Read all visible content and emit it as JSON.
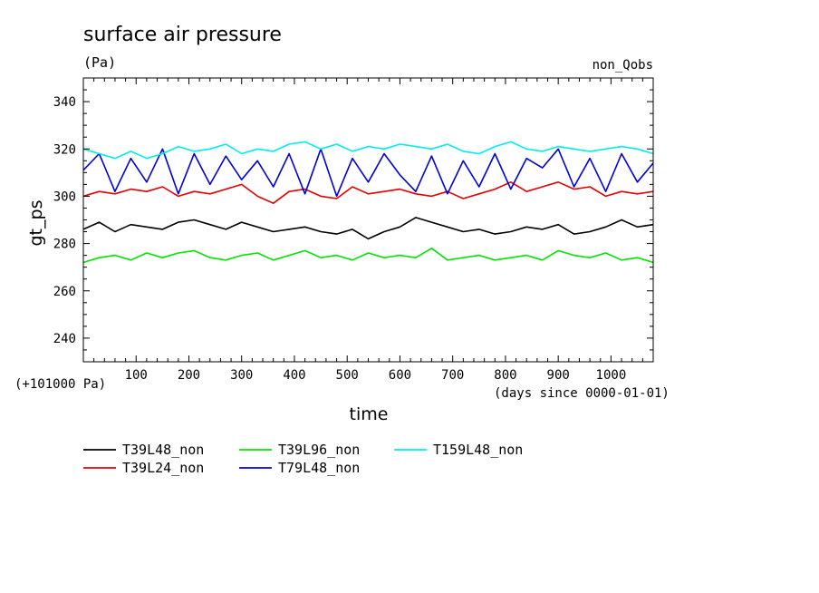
{
  "chart_data": {
    "type": "line",
    "title": "surface air pressure",
    "units": "(Pa)",
    "experiment": "non_Qobs",
    "xlabel": "time",
    "ylabel": "gt_ps",
    "y_offset_note": "(+101000 Pa)",
    "x_units_note": "(days since 0000-01-01)",
    "xlim": [
      0,
      1080
    ],
    "ylim": [
      230,
      350
    ],
    "xticks": [
      100,
      200,
      300,
      400,
      500,
      600,
      700,
      800,
      900,
      1000
    ],
    "yticks": [
      240,
      260,
      280,
      300,
      320,
      340
    ],
    "grid": false,
    "legend_position": "bottom",
    "x": [
      0,
      30,
      60,
      90,
      120,
      150,
      180,
      210,
      240,
      270,
      300,
      330,
      360,
      390,
      420,
      450,
      480,
      510,
      540,
      570,
      600,
      630,
      660,
      690,
      720,
      750,
      780,
      810,
      840,
      870,
      900,
      930,
      960,
      990,
      1020,
      1050,
      1080
    ],
    "series": [
      {
        "name": "T39L48_non",
        "color": "#000000",
        "values": [
          286,
          289,
          285,
          288,
          287,
          286,
          289,
          290,
          288,
          286,
          289,
          287,
          285,
          286,
          287,
          285,
          284,
          286,
          282,
          285,
          287,
          291,
          289,
          287,
          285,
          286,
          284,
          285,
          287,
          286,
          288,
          284,
          285,
          287,
          290,
          287,
          288
        ]
      },
      {
        "name": "T39L24_non",
        "color": "#e60000",
        "values": [
          300,
          302,
          301,
          303,
          302,
          304,
          300,
          302,
          301,
          303,
          305,
          300,
          297,
          302,
          303,
          300,
          299,
          304,
          301,
          302,
          303,
          301,
          300,
          302,
          299,
          301,
          303,
          306,
          302,
          304,
          306,
          303,
          304,
          300,
          302,
          301,
          302
        ]
      },
      {
        "name": "T39L96_non",
        "color": "#00e600",
        "values": [
          272,
          274,
          275,
          273,
          276,
          274,
          276,
          277,
          274,
          273,
          275,
          276,
          273,
          275,
          277,
          274,
          275,
          273,
          276,
          274,
          275,
          274,
          278,
          273,
          274,
          275,
          273,
          274,
          275,
          273,
          277,
          275,
          274,
          276,
          273,
          274,
          272
        ]
      },
      {
        "name": "T79L48_non",
        "color": "#0000dd",
        "values": [
          311,
          318,
          302,
          316,
          306,
          320,
          301,
          318,
          305,
          317,
          307,
          315,
          304,
          318,
          301,
          320,
          300,
          316,
          306,
          318,
          309,
          302,
          317,
          301,
          315,
          304,
          318,
          303,
          316,
          312,
          320,
          304,
          316,
          302,
          318,
          306,
          314
        ]
      },
      {
        "name": "T159L48_non",
        "color": "#00eeee",
        "values": [
          320,
          318,
          316,
          319,
          316,
          318,
          321,
          319,
          320,
          322,
          318,
          320,
          319,
          322,
          323,
          320,
          322,
          319,
          321,
          320,
          322,
          321,
          320,
          322,
          319,
          318,
          321,
          323,
          320,
          319,
          321,
          320,
          319,
          320,
          321,
          320,
          318
        ]
      }
    ]
  }
}
